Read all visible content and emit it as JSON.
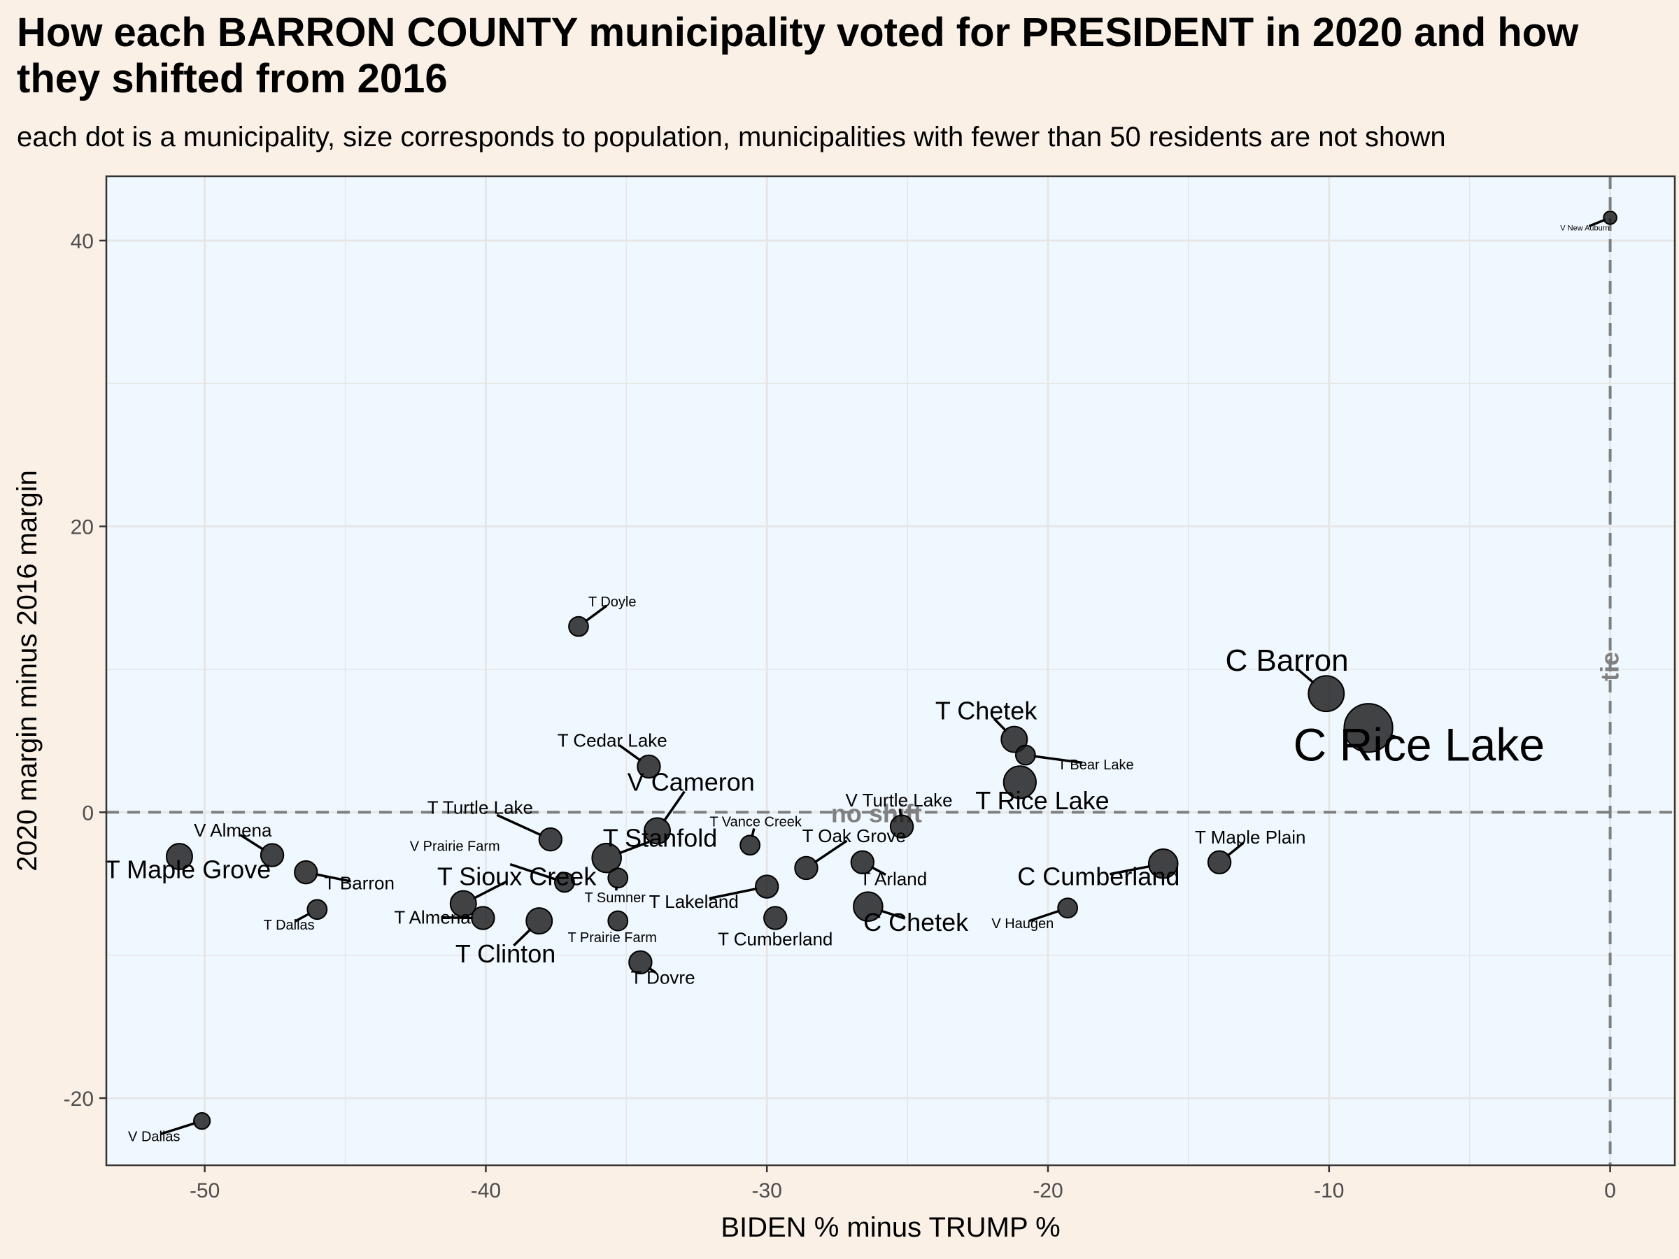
{
  "title": "How each BARRON COUNTY municipality voted for PRESIDENT in 2020 and how they shifted from 2016",
  "subtitle": "each dot is a municipality, size corresponds to population, municipalities with fewer than 50 residents are not shown",
  "colors": {
    "page_background": "#faf0e6",
    "panel_background": "#f0f8ff",
    "grid": "#e6e6e6",
    "point": "#1a1a1a",
    "reference_line": "#7f7f7f",
    "reference_text": "#808080"
  },
  "chart_data": {
    "type": "scatter",
    "xlabel": "BIDEN % minus TRUMP %",
    "ylabel": "2020 margin minus 2016 margin",
    "xlim": [
      -53.5,
      2.3
    ],
    "ylim": [
      -24.7,
      44.5
    ],
    "x_ticks": [
      -50,
      -40,
      -30,
      -20,
      -10,
      0
    ],
    "y_ticks": [
      -20,
      0,
      20,
      40
    ],
    "x_tick_labels": [
      "-50",
      "-40",
      "-30",
      "-20",
      "-10",
      "0"
    ],
    "y_tick_labels": [
      "-20",
      "0",
      "20",
      "40"
    ],
    "grid": true,
    "legend": "none",
    "reference_lines": [
      {
        "orientation": "horizontal",
        "value": 0,
        "label": "no shift"
      },
      {
        "orientation": "vertical",
        "value": 0,
        "label": "tie"
      }
    ],
    "points": [
      {
        "label": "V New Auburn",
        "x": 0.0,
        "y": 41.6,
        "size": 1,
        "label_x": -0.9,
        "label_y": 40.7
      },
      {
        "label": "V Dallas",
        "x": -50.1,
        "y": -21.6,
        "size": 2,
        "label_x": -51.8,
        "label_y": -23.0
      },
      {
        "label": "T Doyle",
        "x": -36.7,
        "y": 13.0,
        "size": 3,
        "label_x": -35.5,
        "label_y": 14.4
      },
      {
        "label": "C Barron",
        "x": -10.1,
        "y": 8.3,
        "size": 8,
        "label_x": -11.5,
        "label_y": 9.9
      },
      {
        "label": "C Rice Lake",
        "x": -8.6,
        "y": 5.9,
        "size": 12,
        "label_x": -6.8,
        "label_y": 3.6
      },
      {
        "label": "T Chetek",
        "x": -21.2,
        "y": 5.1,
        "size": 5,
        "label_x": -22.2,
        "label_y": 6.5
      },
      {
        "label": "T Bear Lake",
        "x": -20.8,
        "y": 4.0,
        "size": 3,
        "label_x": -18.3,
        "label_y": 3.0
      },
      {
        "label": "T Rice Lake",
        "x": -21.0,
        "y": 2.1,
        "size": 7,
        "label_x": -20.2,
        "label_y": 0.2
      },
      {
        "label": "T Cedar Lake",
        "x": -34.2,
        "y": 3.2,
        "size": 4,
        "label_x": -35.5,
        "label_y": 4.6
      },
      {
        "label": "V Cameron",
        "x": -33.9,
        "y": -1.3,
        "size": 5,
        "label_x": -32.7,
        "label_y": 1.5
      },
      {
        "label": "V Turtle Lake",
        "x": -25.2,
        "y": -1.0,
        "size": 4,
        "label_x": -25.3,
        "label_y": 0.4
      },
      {
        "label": "T Turtle Lake",
        "x": -37.7,
        "y": -1.9,
        "size": 4,
        "label_x": -40.2,
        "label_y": -0.1
      },
      {
        "label": "T Vance Creek",
        "x": -30.6,
        "y": -2.3,
        "size": 3,
        "label_x": -30.4,
        "label_y": -1.0
      },
      {
        "label": "T Oak Grove",
        "x": -28.6,
        "y": -3.9,
        "size": 4,
        "label_x": -26.9,
        "label_y": -2.1
      },
      {
        "label": "T Stanfold",
        "x": -35.7,
        "y": -3.2,
        "size": 6,
        "label_x": -33.8,
        "label_y": -2.4
      },
      {
        "label": "T Sumner",
        "x": -35.3,
        "y": -4.6,
        "size": 3,
        "label_x": -35.4,
        "label_y": -6.3
      },
      {
        "label": "V Prairie Farm",
        "x": -37.2,
        "y": -4.9,
        "size": 3,
        "label_x": -41.1,
        "label_y": -2.7
      },
      {
        "label": "T Lakeland",
        "x": -30.0,
        "y": -5.2,
        "size": 4,
        "label_x": -32.6,
        "label_y": -6.7
      },
      {
        "label": "T Arland",
        "x": -26.6,
        "y": -3.5,
        "size": 4,
        "label_x": -25.5,
        "label_y": -5.1
      },
      {
        "label": "C Chetek",
        "x": -26.4,
        "y": -6.6,
        "size": 6,
        "label_x": -24.7,
        "label_y": -8.3
      },
      {
        "label": "C Cumberland",
        "x": -15.9,
        "y": -3.6,
        "size": 6,
        "label_x": -18.2,
        "label_y": -5.1
      },
      {
        "label": "T Maple Plain",
        "x": -13.9,
        "y": -3.5,
        "size": 4,
        "label_x": -12.8,
        "label_y": -2.2
      },
      {
        "label": "V Haugen",
        "x": -19.3,
        "y": -6.7,
        "size": 3,
        "label_x": -20.9,
        "label_y": -8.1
      },
      {
        "label": "T Cumberland",
        "x": -29.7,
        "y": -7.4,
        "size": 4,
        "label_x": -29.7,
        "label_y": -9.3
      },
      {
        "label": "T Prairie Farm",
        "x": -35.3,
        "y": -7.6,
        "size": 3,
        "label_x": -35.5,
        "label_y": -9.1
      },
      {
        "label": "T Dovre",
        "x": -34.5,
        "y": -10.5,
        "size": 4,
        "label_x": -33.7,
        "label_y": -12.0
      },
      {
        "label": "T Clinton",
        "x": -38.1,
        "y": -7.6,
        "size": 5,
        "label_x": -39.3,
        "label_y": -10.5
      },
      {
        "label": "T Sioux Creek",
        "x": -40.8,
        "y": -6.4,
        "size": 5,
        "label_x": -38.9,
        "label_y": -5.1
      },
      {
        "label": "T Almena",
        "x": -40.1,
        "y": -7.4,
        "size": 4,
        "label_x": -41.9,
        "label_y": -7.8
      },
      {
        "label": "T Dallas",
        "x": -46.0,
        "y": -6.8,
        "size": 3,
        "label_x": -47.0,
        "label_y": -8.2
      },
      {
        "label": "T Barron",
        "x": -46.4,
        "y": -4.2,
        "size": 4,
        "label_x": -44.5,
        "label_y": -5.4
      },
      {
        "label": "V Almena",
        "x": -47.6,
        "y": -3.0,
        "size": 4,
        "label_x": -49.0,
        "label_y": -1.7
      },
      {
        "label": "T Maple Grove",
        "x": -50.9,
        "y": -3.1,
        "size": 5,
        "label_x": -50.6,
        "label_y": -4.6
      }
    ]
  }
}
